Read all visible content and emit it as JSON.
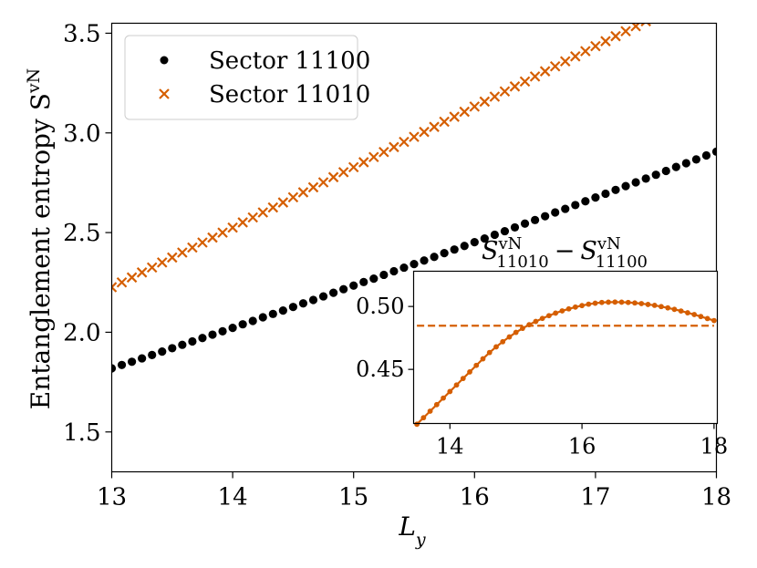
{
  "chart_data": [
    {
      "type": "scatter",
      "title": "",
      "xlabel": "L",
      "xlabel_sub": "y",
      "ylabel": "Entanglement entropy S",
      "ylabel_sup": "vN",
      "xlim": [
        13,
        18
      ],
      "ylim": [
        1.3,
        3.55
      ],
      "xticks": [
        13,
        14,
        15,
        16,
        17,
        18
      ],
      "yticks": [
        1.5,
        2.0,
        2.5,
        3.0,
        3.5
      ],
      "xtick_labels": [
        "13",
        "14",
        "15",
        "16",
        "17",
        "18"
      ],
      "ytick_labels": [
        "1.5",
        "2.0",
        "2.5",
        "3.0",
        "3.5"
      ],
      "grid": false,
      "legend": {
        "placement": "top-left"
      },
      "series": [
        {
          "name": "Sector 11100",
          "marker": "dot",
          "color": "#000000",
          "x_start": 13.0,
          "x_end": 18.0,
          "x_step": 0.1,
          "values": [
            1.819,
            1.836,
            1.852,
            1.869,
            1.886,
            1.903,
            1.92,
            1.937,
            1.954,
            1.971,
            1.988,
            2.005,
            2.022,
            2.04,
            2.057,
            2.075,
            2.092,
            2.109,
            2.127,
            2.145,
            2.162,
            2.18,
            2.198,
            2.216,
            2.234,
            2.252,
            2.269,
            2.288,
            2.306,
            2.324,
            2.342,
            2.36,
            2.378,
            2.397,
            2.415,
            2.433,
            2.452,
            2.47,
            2.489,
            2.507,
            2.526,
            2.545,
            2.563,
            2.582,
            2.601,
            2.619,
            2.638,
            2.657,
            2.676,
            2.695,
            2.714,
            2.733,
            2.752,
            2.771,
            2.79,
            2.809,
            2.829,
            2.848,
            2.867,
            2.887,
            2.906
          ]
        },
        {
          "name": "Sector 11010",
          "marker": "x",
          "color": "#D55E00",
          "x_start": 13.0,
          "x_end": 18.0,
          "x_step": 0.1,
          "values": [
            2.226,
            2.25,
            2.275,
            2.3,
            2.325,
            2.35,
            2.375,
            2.4,
            2.425,
            2.45,
            2.475,
            2.5,
            2.525,
            2.551,
            2.576,
            2.601,
            2.626,
            2.651,
            2.677,
            2.702,
            2.727,
            2.752,
            2.778,
            2.803,
            2.828,
            2.853,
            2.879,
            2.904,
            2.929,
            2.955,
            2.98,
            3.005,
            3.03,
            3.056,
            3.081,
            3.106,
            3.132,
            3.157,
            3.182,
            3.208,
            3.233,
            3.258,
            3.283,
            3.309,
            3.334,
            3.359,
            3.384,
            3.41,
            3.435,
            3.46,
            3.485,
            3.51,
            3.535,
            3.56,
            3.585,
            3.61,
            3.635,
            3.66,
            3.685,
            3.71,
            3.735
          ]
        }
      ]
    },
    {
      "type": "line",
      "title": "S",
      "title_sup_a": "vN",
      "title_sub_a": "11010",
      "title_minus": "−",
      "title_sup_b": "vN",
      "title_sub_b": "11100",
      "xlim": [
        13.45,
        18.05
      ],
      "ylim": [
        0.407,
        0.528
      ],
      "xticks": [
        14,
        16,
        18
      ],
      "yticks": [
        0.45,
        0.5
      ],
      "xtick_labels": [
        "14",
        "16",
        "18"
      ],
      "ytick_labels": [
        "0.45",
        "0.50"
      ],
      "grid": false,
      "color": "#D55E00",
      "series": [
        {
          "marker": "dot",
          "line": "solid",
          "x_start": 13.5,
          "x_end": 18.0,
          "x_step": 0.1,
          "values": [
            0.4064,
            0.4116,
            0.4168,
            0.422,
            0.4272,
            0.4324,
            0.4376,
            0.4428,
            0.448,
            0.4532,
            0.4584,
            0.4634,
            0.4679,
            0.472,
            0.4758,
            0.4794,
            0.4826,
            0.4855,
            0.4881,
            0.4905,
            0.4927,
            0.4947,
            0.4965,
            0.4981,
            0.4995,
            0.5007,
            0.5018,
            0.5026,
            0.5032,
            0.5034,
            0.5035,
            0.5034,
            0.5032,
            0.5028,
            0.5023,
            0.5016,
            0.5009,
            0.4999,
            0.4989,
            0.4977,
            0.4964,
            0.495,
            0.4936,
            0.492,
            0.4904,
            0.4888
          ]
        },
        {
          "line": "dashed",
          "x": [
            13.5,
            18.0
          ],
          "values": [
            0.4847,
            0.4847
          ]
        }
      ]
    }
  ]
}
